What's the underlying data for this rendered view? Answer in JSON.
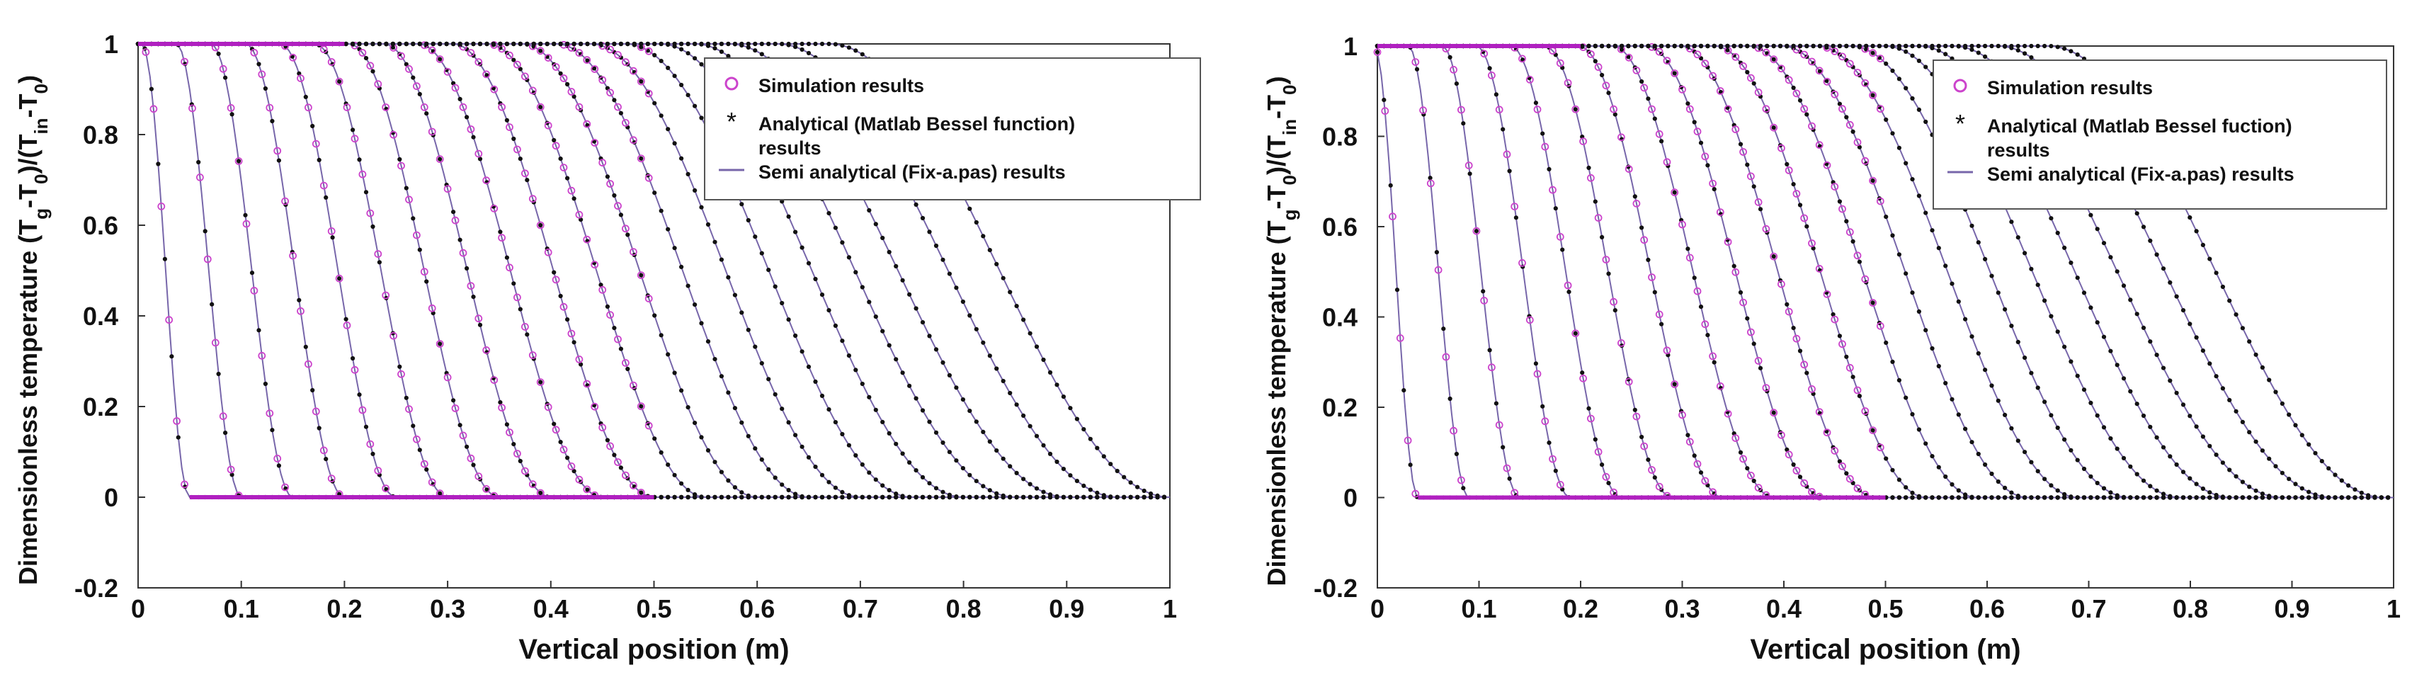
{
  "chart_data": [
    {
      "type": "line",
      "panel": "left",
      "xlabel": "Vertical position (m)",
      "ylabel": "Dimensionless temperature (Tg-T0)/(Tin-T0)",
      "ylabel_parts": {
        "a": "Dimensionless temperature (T",
        "a_sub": "g",
        "b": "-T",
        "b_sub": "0",
        "c": ")/(T",
        "c_sub": "in",
        "d": "-T",
        "d_sub": "0",
        "e": ")"
      },
      "xlim": [
        0,
        1
      ],
      "ylim": [
        -0.2,
        1
      ],
      "x_ticks": [
        0,
        0.1,
        0.2,
        0.3,
        0.4,
        0.5,
        0.6,
        0.7,
        0.8,
        0.9,
        1
      ],
      "x_tick_labels": [
        "0",
        "0.1",
        "0.2",
        "0.3",
        "0.4",
        "0.5",
        "0.6",
        "0.7",
        "0.8",
        "0.9",
        "1"
      ],
      "y_ticks": [
        -0.2,
        0,
        0.2,
        0.4,
        0.6,
        0.8,
        1
      ],
      "y_tick_labels": [
        "-0.2",
        "0",
        "0.2",
        "0.4",
        "0.6",
        "0.8",
        "1"
      ],
      "grid": false,
      "legend_position": "top-right",
      "legend": [
        {
          "marker": "circle",
          "label": "Simulation results"
        },
        {
          "marker": "star",
          "label": "Analytical (Matlab Bessel function)",
          "label2": "results"
        },
        {
          "marker": "line",
          "label": "Semi analytical (Fix-a.pas) results"
        }
      ],
      "front_start_x": 0.05,
      "curve_spacing_x": 0.05,
      "curve_count": 20,
      "simulation_limit_x": 0.5,
      "series_description": "Family of breakthrough curves; each curve equals 1 near the inlet and falls to 0 at its front position (0.05, 0.10, ... 1.00 m); simulation markers shown for x <= 0.5 m",
      "colors": {
        "simulation": "#cc44cc",
        "analytical": "#111111",
        "semi": "#7766aa",
        "baseline_sim": "#b020c0",
        "axis": "#333333"
      }
    },
    {
      "type": "line",
      "panel": "right",
      "xlabel": "Vertical position (m)",
      "ylabel": "Dimensionless temperature (Tg-T0)/(Tin-T0)",
      "ylabel_parts": {
        "a": "Dimensionless temperature (T",
        "a_sub": "g",
        "b": "-T",
        "b_sub": "0",
        "c": ")/(T",
        "c_sub": "in",
        "d": "-T",
        "d_sub": "0",
        "e": ")"
      },
      "xlim": [
        0,
        1
      ],
      "ylim": [
        -0.2,
        1
      ],
      "x_ticks": [
        0,
        0.1,
        0.2,
        0.3,
        0.4,
        0.5,
        0.6,
        0.7,
        0.8,
        0.9,
        1
      ],
      "x_tick_labels": [
        "0",
        "0.1",
        "0.2",
        "0.3",
        "0.4",
        "0.5",
        "0.6",
        "0.7",
        "0.8",
        "0.9",
        "1"
      ],
      "y_ticks": [
        -0.2,
        0,
        0.2,
        0.4,
        0.6,
        0.8,
        1
      ],
      "y_tick_labels": [
        "-0.2",
        "0",
        "0.2",
        "0.4",
        "0.6",
        "0.8",
        "1"
      ],
      "grid": false,
      "legend_position": "top-right",
      "legend": [
        {
          "marker": "circle",
          "label": "Simulation results"
        },
        {
          "marker": "star",
          "label": "Analytical (Matlab Bessel fuction)",
          "label2": "results"
        },
        {
          "marker": "line",
          "label": "Semi analytical (Fix-a.pas) results"
        }
      ],
      "front_start_x": 0.04,
      "curve_spacing_x": 0.05,
      "curve_count": 20,
      "simulation_limit_x": 0.5,
      "series_description": "Family of breakthrough curves; each curve equals 1 near the inlet and falls to 0 at its front position (0.04, 0.09, ... 0.99 m); simulation markers shown for x <= 0.5 m",
      "colors": {
        "simulation": "#cc44cc",
        "analytical": "#111111",
        "semi": "#7766aa",
        "baseline_sim": "#b020c0",
        "axis": "#333333"
      }
    }
  ]
}
